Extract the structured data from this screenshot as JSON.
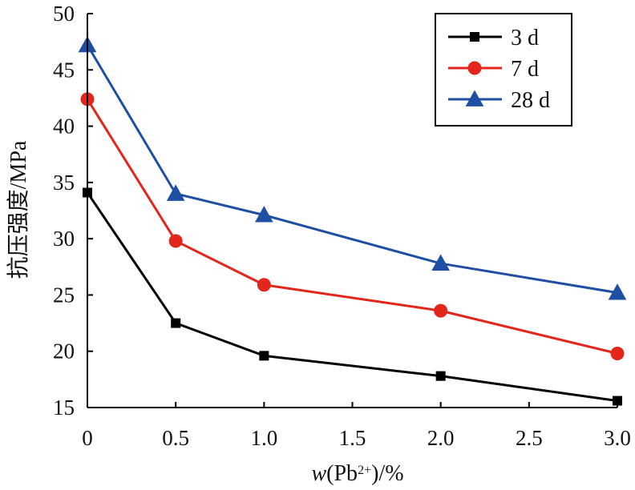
{
  "chart_data": {
    "type": "line",
    "title": "",
    "xlabel": {
      "italic": "w",
      "main": "(Pb",
      "superscript": "2+",
      "suffix": ")/%"
    },
    "ylabel": "抗压强度/MPa",
    "x": [
      0,
      0.5,
      1.0,
      2.0,
      3.0
    ],
    "xlim": [
      0,
      3.0
    ],
    "ylim": [
      15,
      50
    ],
    "xticks": [
      "0",
      "0.5",
      "1.0",
      "1.5",
      "2.0",
      "2.5",
      "3.0"
    ],
    "yticks": [
      "15",
      "20",
      "25",
      "30",
      "35",
      "40",
      "45",
      "50"
    ],
    "grid": false,
    "legend_position": "top-right",
    "series": [
      {
        "name": "3 d",
        "values": [
          34.1,
          22.5,
          19.6,
          17.8,
          15.6
        ],
        "color": "#000000",
        "marker": "square"
      },
      {
        "name": "7 d",
        "values": [
          42.4,
          29.8,
          25.9,
          23.6,
          19.8
        ],
        "color": "#e3261b",
        "marker": "circle"
      },
      {
        "name": "28 d",
        "values": [
          47.2,
          34.0,
          32.1,
          27.8,
          25.2
        ],
        "color": "#1f4fa3",
        "marker": "triangle"
      }
    ]
  }
}
